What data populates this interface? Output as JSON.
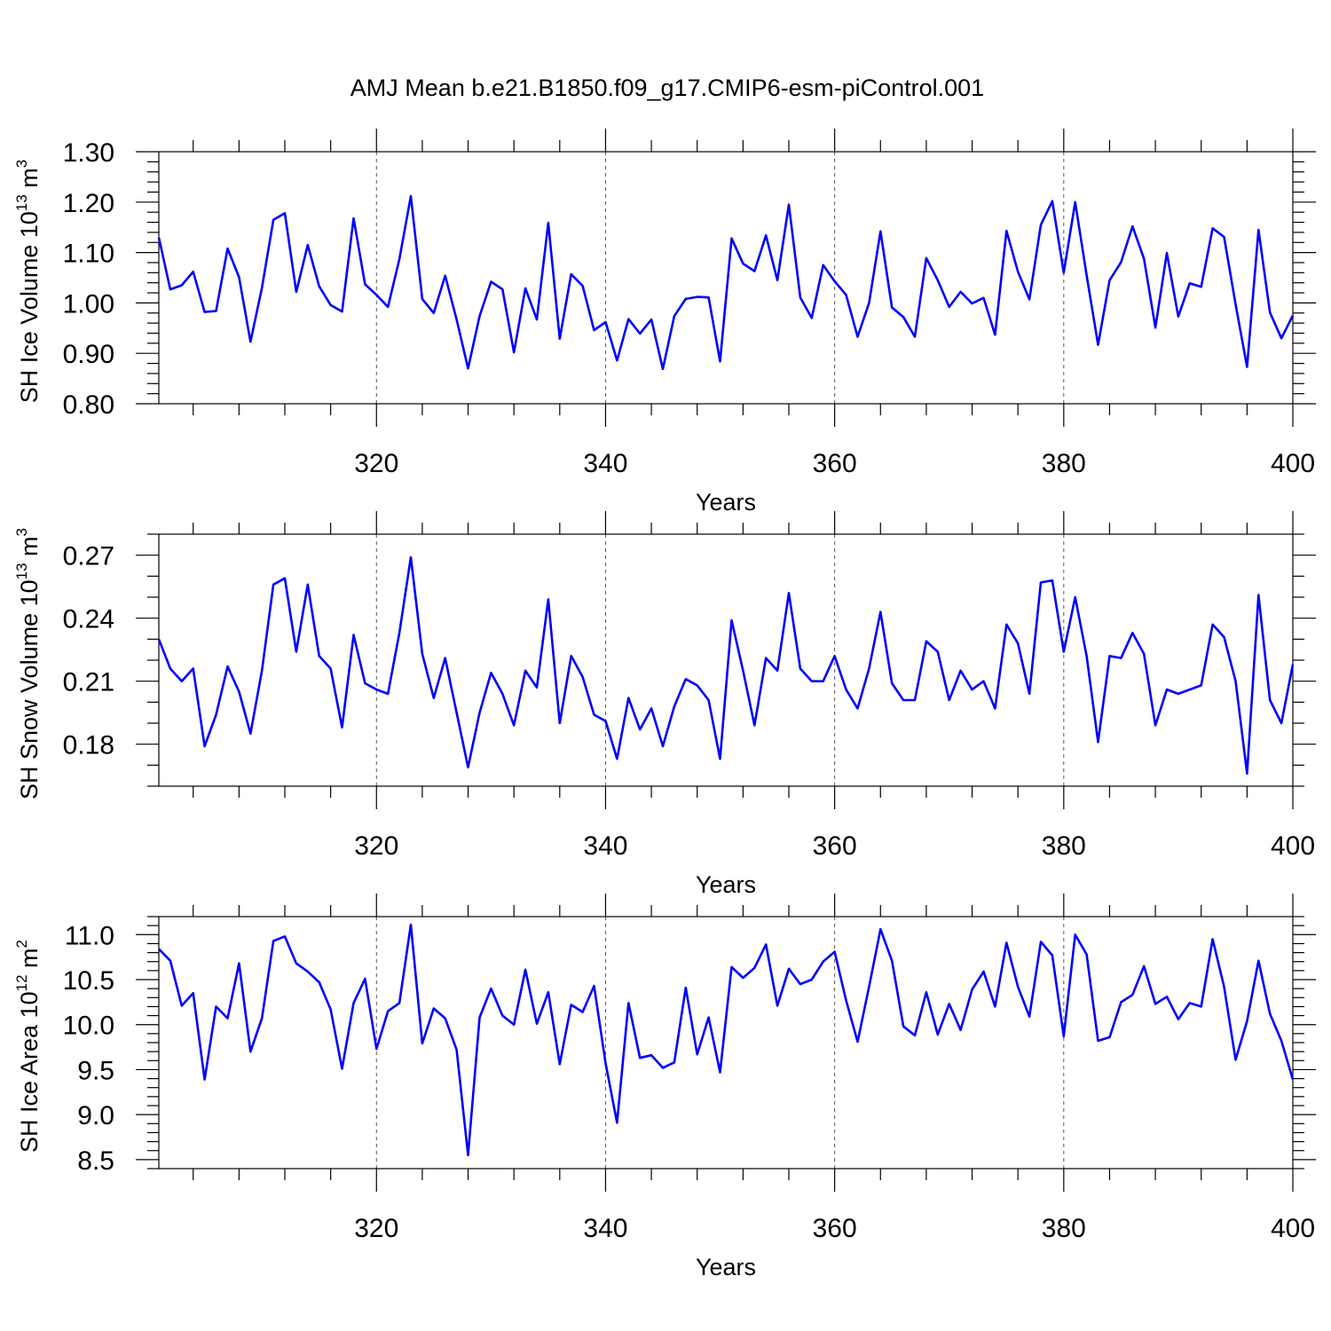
{
  "title": "AMJ Mean b.e21.B1850.f09_g17.CMIP6-esm-piControl.001",
  "colors": {
    "series": "#0000ff",
    "axis": "#000000"
  },
  "chart_data": [
    {
      "type": "line",
      "ylabel": {
        "text": "SH Ice Volume 10",
        "sup": "13",
        "unit": " m",
        "unit_sup": "3"
      },
      "xlabel": "Years",
      "xlim": [
        301,
        400
      ],
      "ylim": [
        0.8,
        1.3
      ],
      "xticks": [
        320,
        340,
        360,
        380,
        400
      ],
      "xtick_labels": [
        "320",
        "340",
        "360",
        "380",
        "400"
      ],
      "yticks": [
        0.8,
        0.9,
        1.0,
        1.1,
        1.2,
        1.3
      ],
      "ytick_labels": [
        "0.80",
        "0.90",
        "1.00",
        "1.10",
        "1.20",
        "1.30"
      ],
      "y_minor_step": 0.02,
      "x_minor_step": 4,
      "grid": "x-major dashed",
      "x_start": 301,
      "values": [
        1.13,
        1.027,
        1.035,
        1.062,
        0.982,
        0.984,
        1.108,
        1.051,
        0.923,
        1.03,
        1.165,
        1.178,
        1.022,
        1.115,
        1.033,
        0.996,
        0.983,
        1.168,
        1.037,
        1.016,
        0.992,
        1.087,
        1.212,
        1.008,
        0.98,
        1.054,
        0.967,
        0.87,
        0.974,
        1.042,
        1.027,
        0.902,
        1.029,
        0.967,
        1.159,
        0.929,
        1.057,
        1.034,
        0.946,
        0.962,
        0.886,
        0.968,
        0.939,
        0.967,
        0.869,
        0.974,
        1.008,
        1.012,
        1.011,
        0.884,
        1.128,
        1.078,
        1.063,
        1.134,
        1.045,
        1.195,
        1.011,
        0.97,
        1.075,
        1.043,
        1.016,
        0.933,
        1.0,
        1.142,
        0.991,
        0.972,
        0.933,
        1.089,
        1.045,
        0.992,
        1.022,
        0.999,
        1.01,
        0.937,
        1.143,
        1.062,
        1.007,
        1.155,
        1.202,
        1.06,
        1.2,
        1.055,
        0.917,
        1.045,
        1.081,
        1.152,
        1.088,
        0.951,
        1.099,
        0.973,
        1.039,
        1.032,
        1.148,
        1.131,
        0.997,
        0.873,
        1.145,
        0.981,
        0.93,
        0.975
      ]
    },
    {
      "type": "line",
      "ylabel": {
        "text": "SH Snow Volume 10",
        "sup": "13",
        "unit": " m",
        "unit_sup": "3"
      },
      "xlabel": "Years",
      "xlim": [
        301,
        400
      ],
      "ylim": [
        0.16,
        0.28
      ],
      "xticks": [
        320,
        340,
        360,
        380,
        400
      ],
      "xtick_labels": [
        "320",
        "340",
        "360",
        "380",
        "400"
      ],
      "yticks": [
        0.18,
        0.21,
        0.24,
        0.27
      ],
      "ytick_labels": [
        "0.18",
        "0.21",
        "0.24",
        "0.27"
      ],
      "y_minor_step": 0.01,
      "x_minor_step": 4,
      "grid": "x-major dashed",
      "x_start": 301,
      "values": [
        0.23,
        0.216,
        0.21,
        0.216,
        0.179,
        0.194,
        0.217,
        0.205,
        0.185,
        0.215,
        0.256,
        0.259,
        0.224,
        0.256,
        0.222,
        0.216,
        0.188,
        0.232,
        0.209,
        0.206,
        0.204,
        0.233,
        0.269,
        0.223,
        0.202,
        0.221,
        0.195,
        0.169,
        0.195,
        0.214,
        0.204,
        0.189,
        0.215,
        0.207,
        0.249,
        0.19,
        0.222,
        0.212,
        0.194,
        0.191,
        0.173,
        0.202,
        0.187,
        0.197,
        0.179,
        0.198,
        0.211,
        0.208,
        0.201,
        0.173,
        0.239,
        0.215,
        0.189,
        0.221,
        0.215,
        0.252,
        0.216,
        0.21,
        0.21,
        0.222,
        0.206,
        0.197,
        0.216,
        0.243,
        0.209,
        0.201,
        0.201,
        0.229,
        0.224,
        0.201,
        0.215,
        0.206,
        0.21,
        0.197,
        0.237,
        0.228,
        0.204,
        0.257,
        0.258,
        0.224,
        0.25,
        0.222,
        0.181,
        0.222,
        0.221,
        0.233,
        0.223,
        0.189,
        0.206,
        0.204,
        0.206,
        0.208,
        0.237,
        0.231,
        0.21,
        0.166,
        0.251,
        0.201,
        0.19,
        0.218
      ]
    },
    {
      "type": "line",
      "ylabel": {
        "text": "SH Ice Area 10",
        "sup": "12",
        "unit": " m",
        "unit_sup": "2"
      },
      "xlabel": "Years",
      "xlim": [
        301,
        400
      ],
      "ylim": [
        8.4,
        11.2
      ],
      "xticks": [
        320,
        340,
        360,
        380,
        400
      ],
      "xtick_labels": [
        "320",
        "340",
        "360",
        "380",
        "400"
      ],
      "yticks": [
        8.5,
        9.0,
        9.5,
        10.0,
        10.5,
        11.0
      ],
      "ytick_labels": [
        "8.5",
        "9.0",
        "9.5",
        "10.0",
        "10.5",
        "11.0"
      ],
      "y_minor_step": 0.1,
      "x_minor_step": 4,
      "grid": "x-major dashed",
      "x_start": 301,
      "values": [
        10.84,
        10.71,
        10.21,
        10.35,
        9.39,
        10.2,
        10.07,
        10.68,
        9.7,
        10.07,
        10.93,
        10.98,
        10.68,
        10.59,
        10.47,
        10.17,
        9.51,
        10.24,
        10.51,
        9.73,
        10.15,
        10.24,
        11.11,
        9.79,
        10.18,
        10.07,
        9.72,
        8.55,
        10.08,
        10.4,
        10.1,
        10.0,
        10.61,
        10.01,
        10.36,
        9.56,
        10.22,
        10.14,
        10.43,
        9.57,
        8.91,
        10.24,
        9.63,
        9.66,
        9.52,
        9.58,
        10.41,
        9.67,
        10.08,
        9.47,
        10.64,
        10.52,
        10.63,
        10.89,
        10.21,
        10.62,
        10.45,
        10.5,
        10.7,
        10.81,
        10.27,
        9.81,
        10.42,
        11.06,
        10.71,
        9.98,
        9.88,
        10.36,
        9.89,
        10.23,
        9.94,
        10.39,
        10.59,
        10.2,
        10.91,
        10.42,
        10.09,
        10.92,
        10.77,
        9.87,
        11.0,
        10.78,
        9.82,
        9.86,
        10.25,
        10.33,
        10.65,
        10.23,
        10.31,
        10.06,
        10.24,
        10.2,
        10.95,
        10.42,
        9.61,
        10.04,
        10.71,
        10.12,
        9.82,
        9.39
      ]
    }
  ]
}
